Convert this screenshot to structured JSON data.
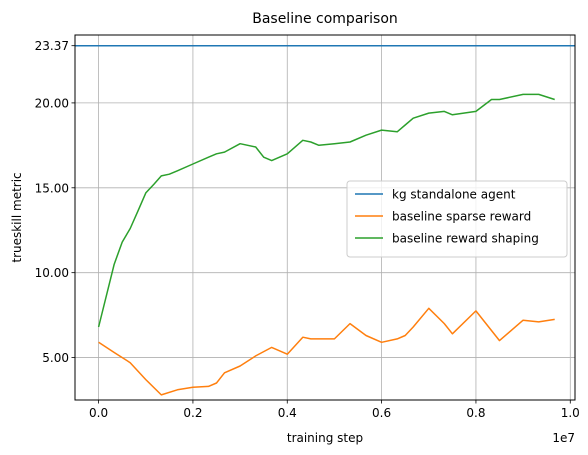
{
  "chart_data": {
    "type": "line",
    "title": "Baseline comparison",
    "xlabel": "training step",
    "ylabel": "trueskill metric",
    "x_offset_label": "1e7",
    "xlim": [
      -0.05,
      1.01
    ],
    "ylim": [
      2.5,
      24.0
    ],
    "xticks": [
      {
        "value": 0.0,
        "label": "0.0"
      },
      {
        "value": 0.2,
        "label": "0.2"
      },
      {
        "value": 0.4,
        "label": "0.4"
      },
      {
        "value": 0.6,
        "label": "0.6"
      },
      {
        "value": 0.8,
        "label": "0.8"
      },
      {
        "value": 1.0,
        "label": "1.0"
      }
    ],
    "yticks": [
      {
        "value": 5.0,
        "label": "5.00"
      },
      {
        "value": 10.0,
        "label": "10.00"
      },
      {
        "value": 15.0,
        "label": "15.00"
      },
      {
        "value": 20.0,
        "label": "20.00"
      },
      {
        "value": 23.37,
        "label": "23.37"
      }
    ],
    "grid": true,
    "legend_position": "center-right",
    "series": [
      {
        "name": "kg standalone agent",
        "color": "#1f77b4",
        "kind": "hline",
        "y": 23.37
      },
      {
        "name": "baseline sparse reward",
        "color": "#ff7f0e",
        "x": [
          0.0,
          0.033,
          0.067,
          0.1,
          0.133,
          0.167,
          0.2,
          0.233,
          0.25,
          0.267,
          0.3,
          0.333,
          0.367,
          0.4,
          0.433,
          0.45,
          0.467,
          0.5,
          0.533,
          0.567,
          0.6,
          0.633,
          0.65,
          0.667,
          0.7,
          0.733,
          0.75,
          0.8,
          0.85,
          0.9,
          0.933,
          0.967
        ],
        "values": [
          5.9,
          5.3,
          4.7,
          3.7,
          2.8,
          3.1,
          3.25,
          3.3,
          3.5,
          4.1,
          4.5,
          5.1,
          5.6,
          5.2,
          6.2,
          6.1,
          6.1,
          6.1,
          7.0,
          6.3,
          5.9,
          6.1,
          6.3,
          6.8,
          7.9,
          7.0,
          6.4,
          7.75,
          6.0,
          7.2,
          7.1,
          7.25
        ]
      },
      {
        "name": "baseline reward shaping",
        "color": "#2ca02c",
        "x": [
          0.0,
          0.033,
          0.05,
          0.067,
          0.083,
          0.1,
          0.117,
          0.133,
          0.15,
          0.167,
          0.2,
          0.233,
          0.25,
          0.267,
          0.3,
          0.333,
          0.35,
          0.367,
          0.4,
          0.433,
          0.45,
          0.467,
          0.5,
          0.533,
          0.567,
          0.6,
          0.633,
          0.65,
          0.667,
          0.7,
          0.733,
          0.75,
          0.8,
          0.833,
          0.85,
          0.9,
          0.933,
          0.967
        ],
        "values": [
          6.8,
          10.5,
          11.8,
          12.6,
          13.6,
          14.7,
          15.2,
          15.7,
          15.8,
          16.0,
          16.4,
          16.8,
          17.0,
          17.1,
          17.6,
          17.4,
          16.8,
          16.6,
          17.0,
          17.8,
          17.7,
          17.5,
          17.6,
          17.7,
          18.1,
          18.4,
          18.3,
          18.7,
          19.1,
          19.4,
          19.5,
          19.3,
          19.5,
          20.2,
          20.2,
          20.5,
          20.5,
          20.2
        ]
      }
    ]
  }
}
